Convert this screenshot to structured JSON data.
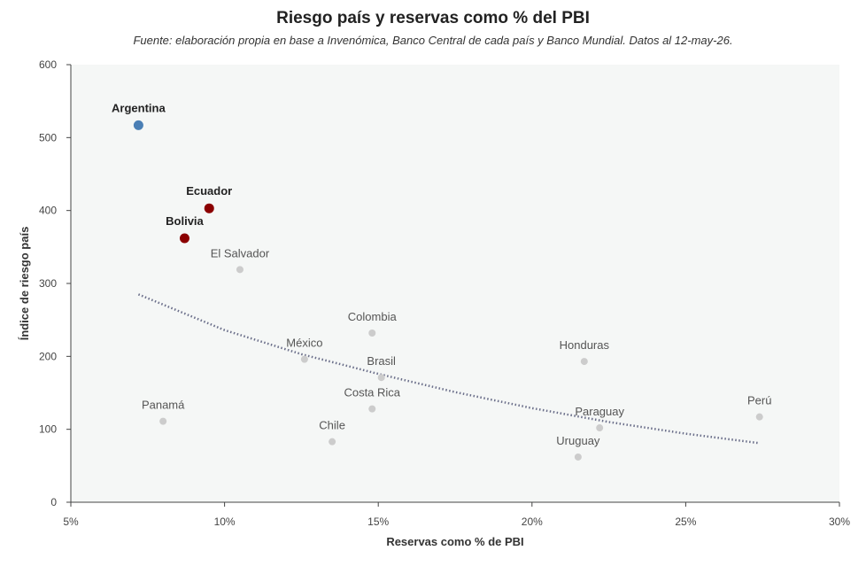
{
  "title": "Riesgo país y reservas como % del PBI",
  "subtitle": "Fuente: elaboración propia en base a Invenómica, Banco Central de cada país y Banco Mundial. Datos al 12-may-26.",
  "chart_data": {
    "type": "scatter",
    "xlabel": "Reservas como % de PBI",
    "ylabel": "Índice de riesgo país",
    "xlim": [
      0.05,
      0.3
    ],
    "ylim": [
      0,
      600
    ],
    "x_ticks": [
      0.05,
      0.1,
      0.15,
      0.2,
      0.25,
      0.3
    ],
    "x_tick_labels": [
      "5%",
      "10%",
      "15%",
      "20%",
      "25%",
      "30%"
    ],
    "y_ticks": [
      0,
      100,
      200,
      300,
      400,
      500,
      600
    ],
    "y_tick_labels": [
      "0",
      "100",
      "200",
      "300",
      "400",
      "500",
      "600"
    ],
    "grid": false,
    "plot_background": "#f5f7f6",
    "points": [
      {
        "label": "Argentina",
        "x": 0.072,
        "y": 517,
        "color": "#4a7fb5",
        "highlight": true
      },
      {
        "label": "Ecuador",
        "x": 0.095,
        "y": 403,
        "color": "#8b0000",
        "highlight": true
      },
      {
        "label": "Bolivia",
        "x": 0.087,
        "y": 362,
        "color": "#8b0000",
        "highlight": true
      },
      {
        "label": "El Salvador",
        "x": 0.105,
        "y": 319,
        "color": "#cccccc",
        "highlight": false
      },
      {
        "label": "Colombia",
        "x": 0.148,
        "y": 232,
        "color": "#cccccc",
        "highlight": false
      },
      {
        "label": "México",
        "x": 0.126,
        "y": 196,
        "color": "#cccccc",
        "highlight": false
      },
      {
        "label": "Brasil",
        "x": 0.151,
        "y": 171,
        "color": "#cccccc",
        "highlight": false
      },
      {
        "label": "Costa Rica",
        "x": 0.148,
        "y": 128,
        "color": "#cccccc",
        "highlight": false
      },
      {
        "label": "Panamá",
        "x": 0.08,
        "y": 111,
        "color": "#cccccc",
        "highlight": false
      },
      {
        "label": "Chile",
        "x": 0.135,
        "y": 83,
        "color": "#cccccc",
        "highlight": false
      },
      {
        "label": "Honduras",
        "x": 0.217,
        "y": 193,
        "color": "#cccccc",
        "highlight": false
      },
      {
        "label": "Paraguay",
        "x": 0.222,
        "y": 102,
        "color": "#cccccc",
        "highlight": false
      },
      {
        "label": "Uruguay",
        "x": 0.215,
        "y": 62,
        "color": "#cccccc",
        "highlight": false
      },
      {
        "label": "Perú",
        "x": 0.274,
        "y": 117,
        "color": "#cccccc",
        "highlight": false
      }
    ],
    "trendline": {
      "style": "dotted",
      "color": "#6b6f8a",
      "points": [
        {
          "x": 0.072,
          "y": 285
        },
        {
          "x": 0.1,
          "y": 236
        },
        {
          "x": 0.125,
          "y": 203
        },
        {
          "x": 0.15,
          "y": 176
        },
        {
          "x": 0.175,
          "y": 151
        },
        {
          "x": 0.2,
          "y": 129
        },
        {
          "x": 0.225,
          "y": 110
        },
        {
          "x": 0.25,
          "y": 94
        },
        {
          "x": 0.274,
          "y": 81
        }
      ]
    }
  }
}
